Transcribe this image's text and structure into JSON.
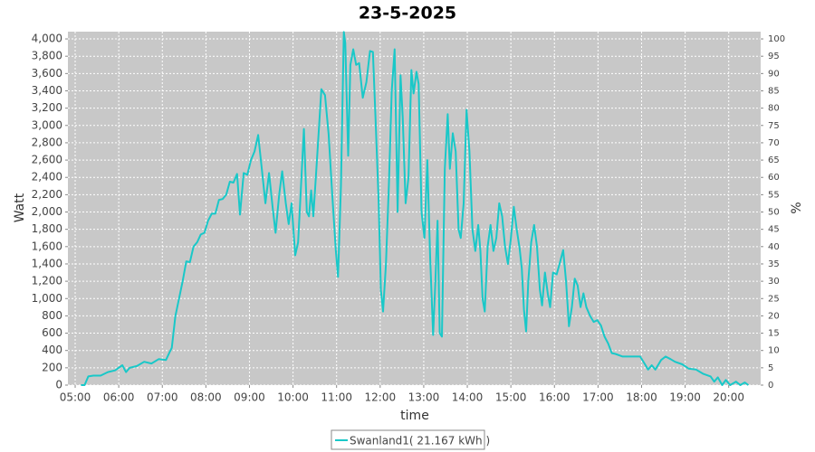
{
  "chart_data": {
    "type": "line",
    "title": "23-5-2025",
    "x_label": "time",
    "y_label": "Watt",
    "y2_label": "%",
    "grid": true,
    "legend": "bottom",
    "xlim": [
      "04:50",
      "20:44"
    ],
    "xticks": [
      "05:00",
      "06:00",
      "07:00",
      "08:00",
      "09:00",
      "10:00",
      "11:00",
      "12:00",
      "13:00",
      "14:00",
      "15:00",
      "16:00",
      "17:00",
      "18:00",
      "19:00",
      "20:00"
    ],
    "ylim": [
      0,
      4084
    ],
    "yticks": [
      0,
      200,
      400,
      600,
      800,
      {
        "value": 1000,
        "label": "1,000"
      },
      {
        "value": 1200,
        "label": "1,200"
      },
      {
        "value": 1400,
        "label": "1,400"
      },
      {
        "value": 1600,
        "label": "1,600"
      },
      {
        "value": 1800,
        "label": "1,800"
      },
      {
        "value": 2000,
        "label": "2,000"
      },
      {
        "value": 2200,
        "label": "2,200"
      },
      {
        "value": 2400,
        "label": "2,400"
      },
      {
        "value": 2600,
        "label": "2,600"
      },
      {
        "value": 2800,
        "label": "2,800"
      },
      {
        "value": 3000,
        "label": "3,000"
      },
      {
        "value": 3200,
        "label": "3,200"
      },
      {
        "value": 3400,
        "label": "3,400"
      },
      {
        "value": 3600,
        "label": "3,600"
      },
      {
        "value": 3800,
        "label": "3,800"
      },
      {
        "value": 4000,
        "label": "4,000"
      }
    ],
    "y2lim": [
      0,
      102.1
    ],
    "y2ticks": [
      0,
      5,
      10,
      15,
      20,
      25,
      30,
      35,
      40,
      45,
      50,
      55,
      60,
      65,
      70,
      75,
      80,
      85,
      90,
      95,
      100
    ],
    "x": [
      "05:08",
      "05:13",
      "05:18",
      "05:25",
      "05:35",
      "05:45",
      "05:55",
      "06:05",
      "06:10",
      "06:15",
      "06:25",
      "06:35",
      "06:45",
      "06:55",
      "07:05",
      "07:10",
      "07:13",
      "07:18",
      "07:23",
      "07:28",
      "07:33",
      "07:38",
      "07:43",
      "07:48",
      "07:53",
      "07:58",
      "08:03",
      "08:08",
      "08:13",
      "08:18",
      "08:23",
      "08:28",
      "08:33",
      "08:38",
      "08:43",
      "08:47",
      "08:52",
      "08:57",
      "09:02",
      "09:07",
      "09:12",
      "09:17",
      "09:22",
      "09:27",
      "09:32",
      "09:36",
      "09:41",
      "09:45",
      "09:50",
      "09:54",
      "09:58",
      "10:03",
      "10:07",
      "10:11",
      "10:15",
      "10:19",
      "10:22",
      "10:25",
      "10:28",
      "10:33",
      "10:39",
      "10:44",
      "10:49",
      "10:54",
      "10:59",
      "11:02",
      "11:06",
      "11:10",
      "11:12",
      "11:16",
      "11:19",
      "11:23",
      "11:27",
      "11:31",
      "11:36",
      "11:41",
      "11:46",
      "11:50",
      "11:54",
      "11:58",
      "12:01",
      "12:04",
      "12:08",
      "12:12",
      "12:16",
      "12:20",
      "12:24",
      "12:28",
      "12:31",
      "12:35",
      "12:39",
      "12:43",
      "12:46",
      "12:50",
      "12:53",
      "12:57",
      "13:01",
      "13:05",
      "13:09",
      "13:13",
      "13:16",
      "13:19",
      "13:22",
      "13:25",
      "13:29",
      "13:33",
      "13:36",
      "13:40",
      "13:44",
      "13:48",
      "13:51",
      "13:55",
      "13:59",
      "14:03",
      "14:07",
      "14:11",
      "14:15",
      "14:18",
      "14:21",
      "14:24",
      "14:28",
      "14:32",
      "14:36",
      "14:40",
      "14:44",
      "14:48",
      "14:52",
      "14:56",
      "15:00",
      "15:04",
      "15:08",
      "15:12",
      "15:15",
      "15:18",
      "15:21",
      "15:24",
      "15:28",
      "15:32",
      "15:36",
      "15:40",
      "15:43",
      "15:47",
      "15:51",
      "15:54",
      "15:58",
      "16:03",
      "16:07",
      "16:12",
      "16:16",
      "16:20",
      "16:24",
      "16:28",
      "16:32",
      "16:36",
      "16:40",
      "16:44",
      "16:49",
      "16:54",
      "16:59",
      "17:04",
      "17:09",
      "17:14",
      "17:19",
      "17:24",
      "17:34",
      "17:44",
      "17:52",
      "17:58",
      "18:04",
      "18:09",
      "18:14",
      "18:19",
      "18:27",
      "18:33",
      "18:40",
      "18:46",
      "18:56",
      "19:05",
      "19:15",
      "19:25",
      "19:35",
      "19:40",
      "19:45",
      "19:51",
      "19:56",
      "20:02",
      "20:10",
      "20:16",
      "20:22",
      "20:27"
    ],
    "series": [
      {
        "name": "Swanland1( 21.167 kWh )",
        "color": "#19c8c8",
        "values": [
          0,
          0,
          100,
          110,
          110,
          150,
          170,
          230,
          150,
          200,
          220,
          270,
          250,
          300,
          290,
          380,
          430,
          800,
          1000,
          1200,
          1430,
          1420,
          1600,
          1650,
          1740,
          1760,
          1900,
          1980,
          1980,
          2140,
          2150,
          2200,
          2350,
          2340,
          2440,
          1970,
          2450,
          2430,
          2600,
          2700,
          2890,
          2500,
          2100,
          2450,
          2050,
          1760,
          2200,
          2470,
          2100,
          1860,
          2100,
          1500,
          1650,
          2300,
          2960,
          2000,
          1950,
          2250,
          1950,
          2600,
          3420,
          3350,
          2900,
          2200,
          1550,
          1250,
          2300,
          4080,
          3950,
          2650,
          3700,
          3880,
          3700,
          3720,
          3320,
          3500,
          3860,
          3850,
          3000,
          2100,
          1100,
          850,
          1400,
          2300,
          3400,
          3880,
          2000,
          3580,
          3100,
          2100,
          2400,
          3640,
          3370,
          3620,
          3480,
          2000,
          1700,
          2600,
          1450,
          580,
          1200,
          1900,
          600,
          560,
          2500,
          3130,
          2500,
          2910,
          2700,
          1800,
          1700,
          2100,
          3180,
          2700,
          1800,
          1550,
          1850,
          1550,
          1000,
          850,
          1600,
          1850,
          1550,
          1700,
          2100,
          1950,
          1600,
          1400,
          1700,
          2060,
          1800,
          1580,
          1350,
          870,
          620,
          1200,
          1650,
          1850,
          1600,
          1100,
          920,
          1300,
          1050,
          900,
          1300,
          1280,
          1400,
          1560,
          1200,
          680,
          900,
          1230,
          1150,
          900,
          1060,
          900,
          800,
          730,
          750,
          690,
          560,
          480,
          370,
          360,
          330,
          330,
          330,
          330,
          250,
          180,
          230,
          180,
          290,
          330,
          300,
          270,
          240,
          190,
          180,
          130,
          100,
          40,
          90,
          0,
          60,
          0,
          40,
          0,
          30,
          0
        ]
      }
    ]
  }
}
